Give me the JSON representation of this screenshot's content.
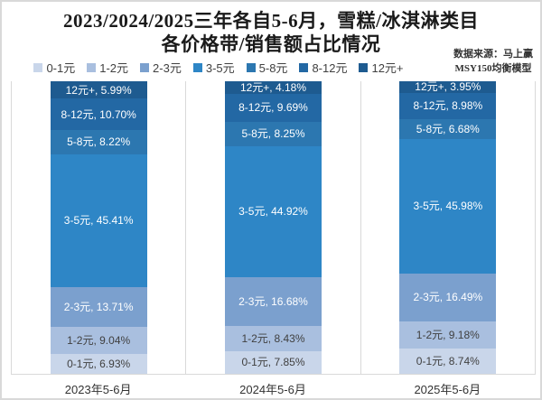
{
  "title": {
    "line1": "2023/2024/2025三年各自5-6月，雪糕/冰淇淋类目",
    "line2": "各价格带/销售额占比情况"
  },
  "source": {
    "line1": "数据来源：马上赢",
    "line2": "MSY150均衡模型"
  },
  "chart_data": {
    "type": "bar",
    "stacked": true,
    "orientation": "vertical",
    "unit": "%",
    "title": "2023/2024/2025三年各自5-6月，雪糕/冰淇淋类目 各价格带/销售额占比情况",
    "categories": [
      "2023年5-6月",
      "2024年5-6月",
      "2025年5-6月"
    ],
    "series": [
      {
        "name": "0-1元",
        "color": "#c9d6ea",
        "label_color": "#404040",
        "values": [
          6.93,
          7.85,
          8.74
        ]
      },
      {
        "name": "1-2元",
        "color": "#a9bfdf",
        "label_color": "#404040",
        "values": [
          9.04,
          8.43,
          9.18
        ]
      },
      {
        "name": "2-3元",
        "color": "#7ba0ce",
        "label_color": "#ffffff",
        "values": [
          13.71,
          16.68,
          16.49
        ]
      },
      {
        "name": "3-5元",
        "color": "#2e86c6",
        "label_color": "#ffffff",
        "values": [
          45.41,
          44.92,
          45.98
        ]
      },
      {
        "name": "5-8元",
        "color": "#2c77b0",
        "label_color": "#ffffff",
        "values": [
          8.22,
          8.25,
          6.68
        ]
      },
      {
        "name": "8-12元",
        "color": "#2368a4",
        "label_color": "#ffffff",
        "values": [
          10.7,
          9.69,
          8.98
        ]
      },
      {
        "name": "12元+",
        "color": "#1e5b90",
        "label_color": "#ffffff",
        "values": [
          5.99,
          4.18,
          3.95
        ]
      }
    ],
    "ylim": [
      0,
      100
    ],
    "grid": "category-separators",
    "legend_position": "top",
    "label_format": "{name}, {value}%"
  }
}
